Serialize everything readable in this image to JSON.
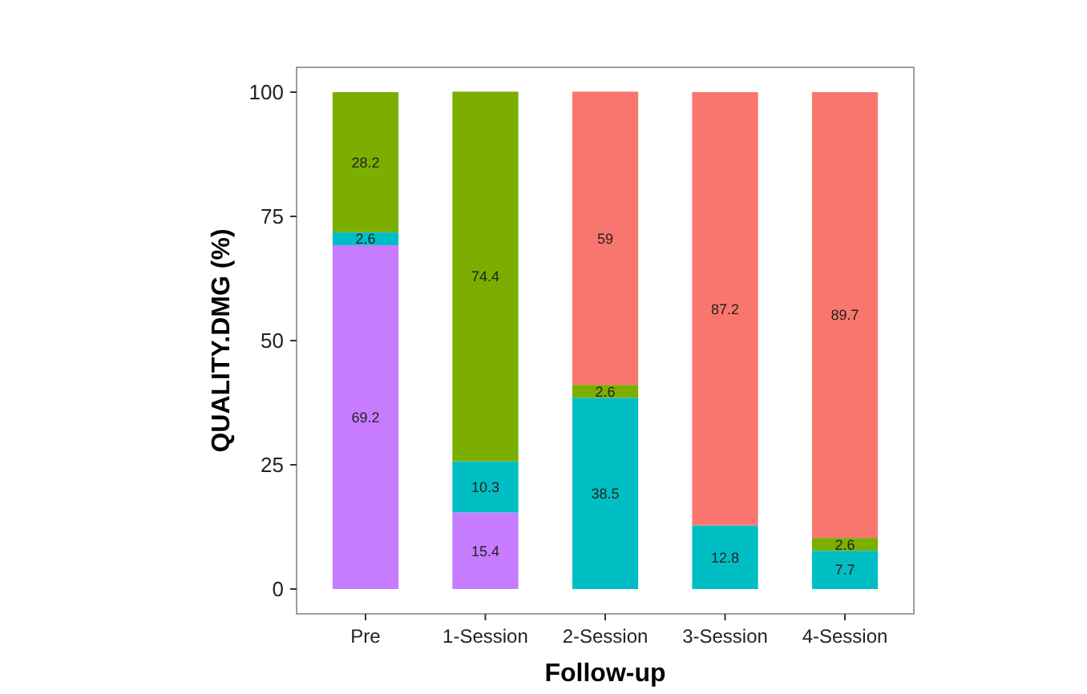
{
  "chart_data": {
    "type": "bar",
    "stacked": true,
    "xlabel": "Follow-up",
    "ylabel": "QUALITY.DMG (%)",
    "categories": [
      "Pre",
      "1-Session",
      "2-Session",
      "3-Session",
      "4-Session"
    ],
    "series": [
      {
        "color": "#c77cff",
        "values": [
          69.2,
          15.4,
          null,
          null,
          null
        ]
      },
      {
        "color": "#00bfc4",
        "values": [
          2.6,
          10.3,
          38.5,
          12.8,
          7.7
        ]
      },
      {
        "color": "#7cae00",
        "values": [
          28.2,
          74.4,
          2.6,
          null,
          2.6
        ]
      },
      {
        "color": "#f8766d",
        "values": [
          null,
          null,
          59,
          87.2,
          89.7
        ]
      }
    ],
    "ylim": [
      -5,
      105
    ],
    "yticks": [
      0,
      25,
      50,
      75,
      100
    ],
    "grid": false,
    "data_labels": true
  }
}
